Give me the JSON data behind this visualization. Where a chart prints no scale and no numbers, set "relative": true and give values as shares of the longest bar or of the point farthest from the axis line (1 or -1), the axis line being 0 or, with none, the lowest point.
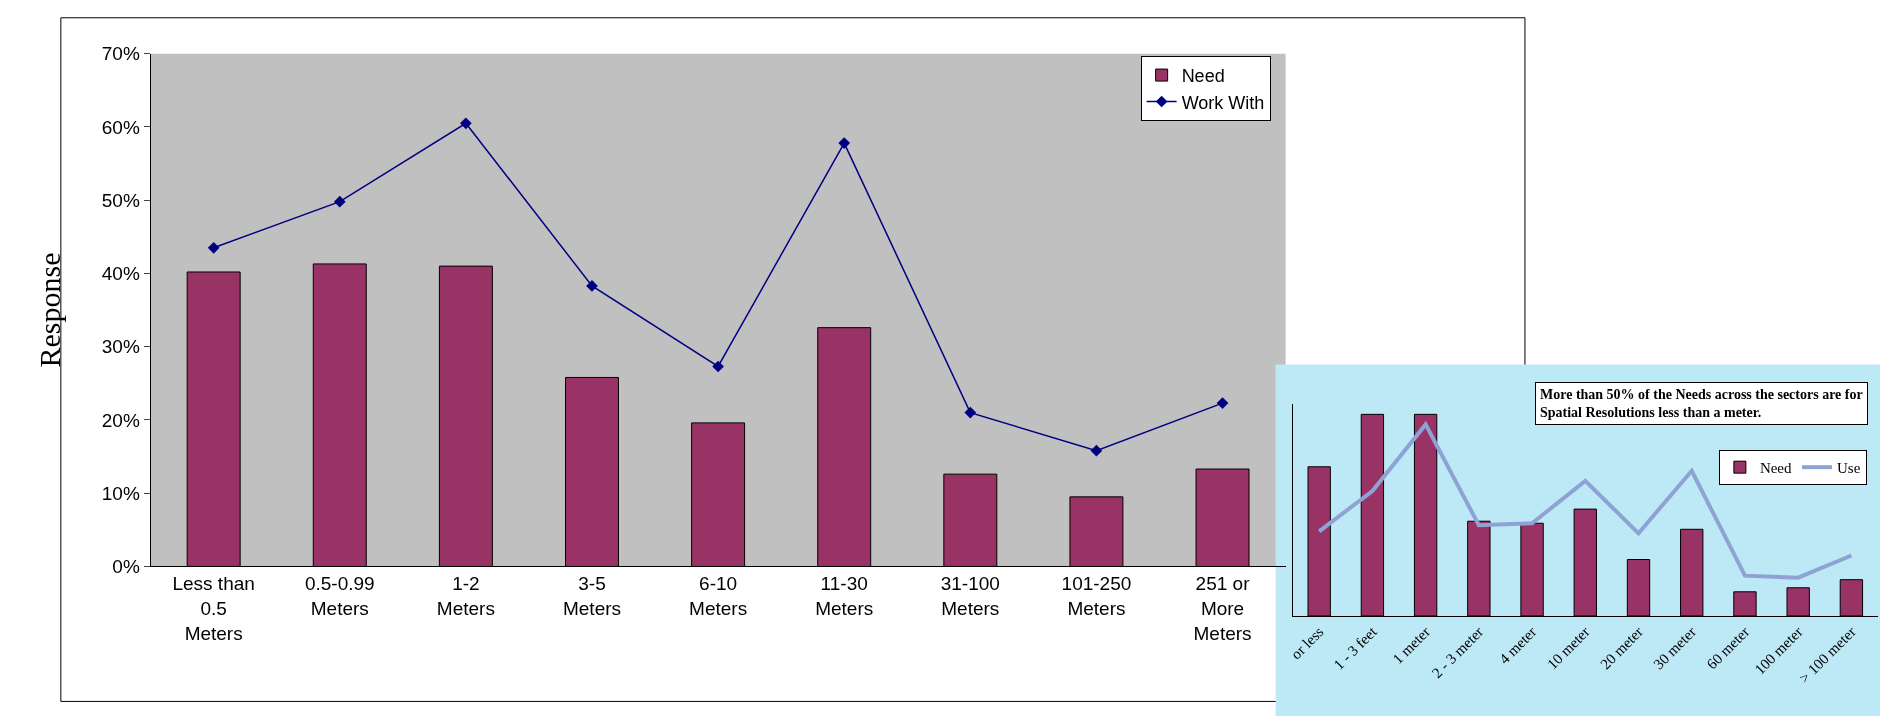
{
  "chart_data": [
    {
      "type": "bar",
      "ylabel": "Response",
      "categories": [
        "Less than 0.5 Meters",
        "0.5-0.99 Meters",
        "1-2 Meters",
        "3-5 Meters",
        "6-10 Meters",
        "11-30 Meters",
        "31-100 Meters",
        "101-250 Meters",
        "251 or More Meters"
      ],
      "series": [
        {
          "name": "Need",
          "color": "#993366",
          "values": [
            40.2,
            41.3,
            41.0,
            25.8,
            19.6,
            32.6,
            12.6,
            9.5,
            13.3
          ]
        },
        {
          "name": "Work With",
          "type": "line",
          "color": "#000080",
          "marker": "diamond",
          "values": [
            43.5,
            49.8,
            60.5,
            38.3,
            27.3,
            57.8,
            21.0,
            15.8,
            22.3
          ]
        }
      ],
      "ylim": [
        0,
        70
      ],
      "yticks": [
        {
          "value": 0,
          "label": "0%"
        },
        {
          "value": 10,
          "label": "10%"
        },
        {
          "value": 20,
          "label": "20%"
        },
        {
          "value": 30,
          "label": "30%"
        },
        {
          "value": 40,
          "label": "40%"
        },
        {
          "value": 50,
          "label": "50%"
        },
        {
          "value": 60,
          "label": "60%"
        },
        {
          "value": 70,
          "label": "70%"
        }
      ],
      "grid": false,
      "legend": "top right"
    },
    {
      "type": "bar",
      "relative": true,
      "annotations": [
        "More than 50% of the Needs across the sectors are for Spatial Resolutions less than a meter."
      ],
      "categories": [
        "or less",
        "1 - 3 feet",
        "1 meter",
        "2 - 3 meter",
        "4 meter",
        "10 meter",
        "20 meter",
        "30 meter",
        "60 meter",
        "100 meter",
        "> 100 meter"
      ],
      "series": [
        {
          "name": "Need",
          "color": "#993366",
          "values": [
            0.74,
            1,
            1,
            0.47,
            0.46,
            0.53,
            0.28,
            0.43,
            0.12,
            0.14,
            0.18
          ]
        },
        {
          "name": "Use",
          "type": "line",
          "color": "#8fa2d4",
          "marker": "none",
          "values": [
            0.42,
            0.62,
            0.95,
            0.45,
            0.46,
            0.67,
            0.41,
            0.72,
            0.2,
            0.19,
            0.3
          ]
        }
      ],
      "legend": "top right"
    }
  ]
}
